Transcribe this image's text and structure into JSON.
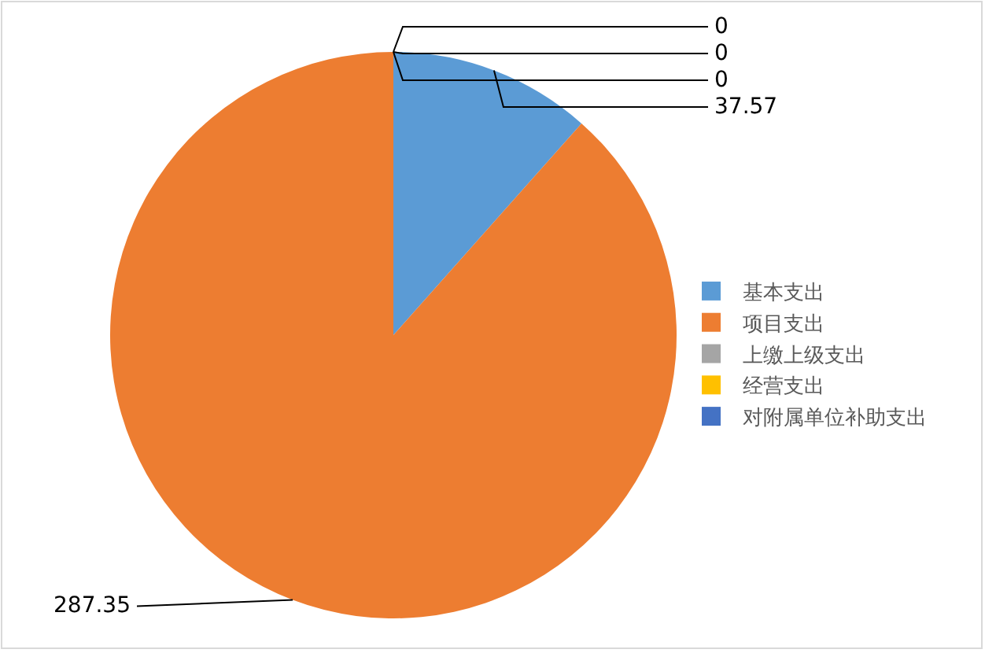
{
  "chart_data": {
    "type": "pie",
    "categories": [
      "基本支出",
      "项目支出",
      "上缴上级支出",
      "经营支出",
      "对附属单位补助支出"
    ],
    "values": [
      37.57,
      287.35,
      0,
      0,
      0
    ],
    "colors": [
      "#5b9bd5",
      "#ed7d31",
      "#a5a5a5",
      "#ffc000",
      "#4472c4"
    ],
    "value_labels": [
      "37.57",
      "287.35",
      "0",
      "0",
      "0"
    ],
    "legend": "right"
  }
}
